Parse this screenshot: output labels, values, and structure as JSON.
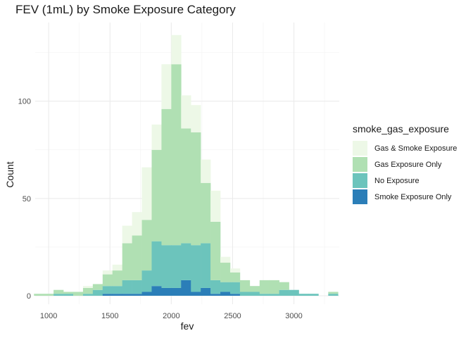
{
  "chart_data": {
    "type": "bar",
    "stacked": true,
    "title": "FEV (1mL) by Smoke Exposure Category",
    "xlabel": "fev",
    "ylabel": "Count",
    "xlim": [
      890,
      3370
    ],
    "ylim": [
      0,
      135
    ],
    "xticks": [
      1000,
      1500,
      2000,
      2500,
      3000
    ],
    "yticks": [
      0,
      50,
      100
    ],
    "bin_width": 80,
    "grid": true,
    "legend": {
      "title": "smoke_gas_exposure",
      "placement": "right"
    },
    "bin_centers": [
      920,
      1000,
      1080,
      1160,
      1240,
      1320,
      1400,
      1480,
      1560,
      1640,
      1720,
      1800,
      1880,
      1960,
      2040,
      2120,
      2200,
      2280,
      2360,
      2440,
      2520,
      2600,
      2680,
      2760,
      2840,
      2920,
      3000,
      3080,
      3160,
      3240,
      3320
    ],
    "series": [
      {
        "name": "Smoke Exposure Only",
        "color": "#2b7eb8",
        "values": [
          0,
          0,
          0,
          0,
          0,
          0,
          0,
          1,
          1,
          1,
          1,
          2,
          5,
          4,
          4,
          8,
          2,
          4,
          1,
          2,
          1,
          0,
          0,
          0,
          0,
          0,
          0,
          0,
          0,
          0,
          0
        ]
      },
      {
        "name": "No Exposure",
        "color": "#6cc4bc",
        "values": [
          0,
          0,
          1,
          1,
          0,
          1,
          3,
          4,
          4,
          7,
          7,
          11,
          23,
          22,
          22,
          19,
          24,
          23,
          7,
          5,
          6,
          2,
          2,
          1,
          1,
          3,
          3,
          1,
          1,
          0,
          1
        ]
      },
      {
        "name": "Gas Exposure Only",
        "color": "#b0e0b3",
        "values": [
          1,
          1,
          2,
          1,
          2,
          3,
          3,
          6,
          8,
          19,
          23,
          26,
          47,
          70,
          93,
          59,
          58,
          31,
          30,
          10,
          5,
          6,
          3,
          7,
          7,
          4,
          0,
          0,
          0,
          0,
          1
        ]
      },
      {
        "name": "Gas & Smoke Exposure",
        "color": "#edf8e7",
        "values": [
          0,
          0,
          0,
          0,
          0,
          1,
          0,
          2,
          3,
          9,
          12,
          27,
          13,
          23,
          15,
          17,
          14,
          12,
          16,
          3,
          2,
          0,
          0,
          0,
          0,
          0,
          0,
          0,
          0,
          0,
          0
        ]
      }
    ]
  }
}
